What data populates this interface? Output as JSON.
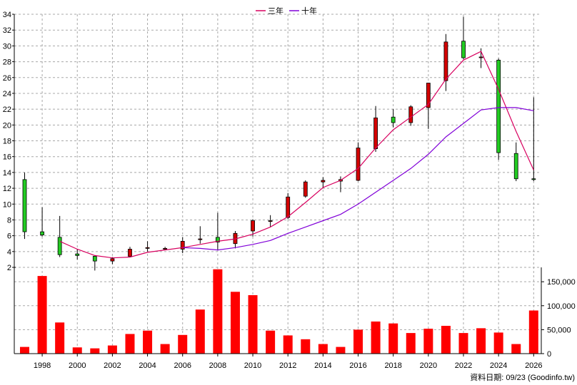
{
  "chart_data": {
    "type": "candlestick",
    "legend": [
      {
        "name": "三年",
        "color": "#d8005f"
      },
      {
        "name": "十年",
        "color": "#8000d8"
      }
    ],
    "legend_position": "top-center",
    "grid": true,
    "price_axis": {
      "ylim": [
        2,
        34
      ],
      "ticks": [
        2,
        4,
        6,
        8,
        10,
        12,
        14,
        16,
        18,
        20,
        22,
        24,
        26,
        28,
        30,
        32,
        34
      ]
    },
    "volume_axis": {
      "ylim": [
        0,
        180000
      ],
      "ticks": [
        0,
        50000,
        100000,
        150000
      ],
      "tick_labels": [
        "0",
        "50,000",
        "100,000",
        "150,000"
      ]
    },
    "x_ticks": [
      "1998",
      "2000",
      "2002",
      "2004",
      "2006",
      "2008",
      "2010",
      "2012",
      "2014",
      "2016",
      "2018",
      "2020",
      "2022",
      "2024",
      "2026"
    ],
    "years": [
      1997,
      1998,
      1999,
      2000,
      2001,
      2002,
      2003,
      2004,
      2005,
      2006,
      2007,
      2008,
      2009,
      2010,
      2011,
      2012,
      2013,
      2014,
      2015,
      2016,
      2017,
      2018,
      2019,
      2020,
      2021,
      2022,
      2023,
      2024,
      2025,
      2026
    ],
    "candles": [
      {
        "year": 1997,
        "open": 13.1,
        "high": 14.0,
        "low": 5.6,
        "close": 6.5
      },
      {
        "year": 1998,
        "open": 6.5,
        "high": 9.6,
        "low": 5.9,
        "close": 6.1
      },
      {
        "year": 1999,
        "open": 5.8,
        "high": 8.5,
        "low": 3.3,
        "close": 3.6
      },
      {
        "year": 2000,
        "open": 3.7,
        "high": 4.3,
        "low": 3.0,
        "close": 3.5
      },
      {
        "year": 2001,
        "open": 3.4,
        "high": 3.5,
        "low": 1.6,
        "close": 2.8
      },
      {
        "year": 2002,
        "open": 2.8,
        "high": 3.3,
        "low": 2.4,
        "close": 3.1
      },
      {
        "year": 2003,
        "open": 3.4,
        "high": 4.6,
        "low": 3.3,
        "close": 4.3
      },
      {
        "year": 2004,
        "open": 4.4,
        "high": 5.3,
        "low": 4.0,
        "close": 4.5
      },
      {
        "year": 2005,
        "open": 4.3,
        "high": 4.6,
        "low": 4.2,
        "close": 4.4
      },
      {
        "year": 2006,
        "open": 4.3,
        "high": 5.8,
        "low": 3.8,
        "close": 5.3
      },
      {
        "year": 2007,
        "open": 5.5,
        "high": 7.2,
        "low": 5.0,
        "close": 5.6
      },
      {
        "year": 2008,
        "open": 5.8,
        "high": 8.9,
        "low": 4.2,
        "close": 5.2
      },
      {
        "year": 2009,
        "open": 5.0,
        "high": 6.6,
        "low": 4.4,
        "close": 6.3
      },
      {
        "year": 2010,
        "open": 6.6,
        "high": 8.1,
        "low": 5.9,
        "close": 7.9
      },
      {
        "year": 2011,
        "open": 7.8,
        "high": 8.6,
        "low": 7.1,
        "close": 7.9
      },
      {
        "year": 2012,
        "open": 8.3,
        "high": 11.4,
        "low": 8.1,
        "close": 10.9
      },
      {
        "year": 2013,
        "open": 11.0,
        "high": 13.0,
        "low": 10.8,
        "close": 12.8
      },
      {
        "year": 2014,
        "open": 12.8,
        "high": 13.4,
        "low": 12.0,
        "close": 13.0
      },
      {
        "year": 2015,
        "open": 12.9,
        "high": 13.5,
        "low": 11.5,
        "close": 13.1
      },
      {
        "year": 2016,
        "open": 13.0,
        "high": 17.8,
        "low": 12.9,
        "close": 17.1
      },
      {
        "year": 2017,
        "open": 17.0,
        "high": 22.4,
        "low": 16.6,
        "close": 20.9
      },
      {
        "year": 2018,
        "open": 21.0,
        "high": 22.0,
        "low": 19.7,
        "close": 20.3
      },
      {
        "year": 2019,
        "open": 20.3,
        "high": 22.5,
        "low": 19.9,
        "close": 22.3
      },
      {
        "year": 2020,
        "open": 22.2,
        "high": 25.3,
        "low": 19.5,
        "close": 25.3
      },
      {
        "year": 2021,
        "open": 25.6,
        "high": 31.5,
        "low": 24.3,
        "close": 30.5
      },
      {
        "year": 2022,
        "open": 30.6,
        "high": 33.7,
        "low": 28.3,
        "close": 28.5
      },
      {
        "year": 2023,
        "open": 28.5,
        "high": 29.7,
        "low": 27.2,
        "close": 28.6
      },
      {
        "year": 2024,
        "open": 28.2,
        "high": 28.4,
        "low": 15.6,
        "close": 16.5
      },
      {
        "year": 2025,
        "open": 16.4,
        "high": 17.8,
        "low": 12.9,
        "close": 13.2
      },
      {
        "year": 2026,
        "open": 13.2,
        "high": 23.5,
        "low": 12.9,
        "close": 13.1
      }
    ],
    "ma3": {
      "name": "三年",
      "years": [
        1999,
        2000,
        2001,
        2002,
        2003,
        2004,
        2005,
        2006,
        2007,
        2008,
        2009,
        2010,
        2011,
        2012,
        2013,
        2014,
        2015,
        2016,
        2017,
        2018,
        2019,
        2020,
        2021,
        2022,
        2023,
        2024,
        2025,
        2026
      ],
      "values": [
        5.3,
        4.3,
        3.5,
        3.2,
        3.3,
        3.9,
        4.2,
        4.5,
        4.9,
        5.3,
        5.6,
        6.2,
        7.1,
        8.4,
        10.2,
        12.1,
        13.0,
        14.5,
        17.1,
        19.4,
        21.0,
        22.6,
        25.8,
        28.2,
        29.3,
        24.5,
        19.2,
        14.3
      ]
    },
    "ma10": {
      "name": "十年",
      "years": [
        2006,
        2007,
        2008,
        2009,
        2010,
        2011,
        2012,
        2013,
        2014,
        2015,
        2016,
        2017,
        2018,
        2019,
        2020,
        2021,
        2022,
        2023,
        2024,
        2025,
        2026
      ],
      "values": [
        4.5,
        4.4,
        4.2,
        4.5,
        4.9,
        5.4,
        6.3,
        7.1,
        7.9,
        8.7,
        10.0,
        11.5,
        13.0,
        14.5,
        16.3,
        18.5,
        20.2,
        21.9,
        22.2,
        22.2,
        21.8
      ]
    },
    "volume": [
      14000,
      162000,
      65000,
      13000,
      11000,
      17000,
      41000,
      48000,
      20000,
      39000,
      92000,
      176000,
      129000,
      122000,
      48000,
      38000,
      30000,
      20000,
      14000,
      50000,
      67000,
      63000,
      43000,
      52000,
      58000,
      43000,
      53000,
      44000,
      20000,
      90000
    ],
    "footer": "資料日期: 09/23  (Goodinfo.tw)"
  },
  "colors": {
    "up": "#d40000",
    "down": "#22cc22",
    "volume": "#ff0000",
    "grid": "#a8a8a8"
  }
}
